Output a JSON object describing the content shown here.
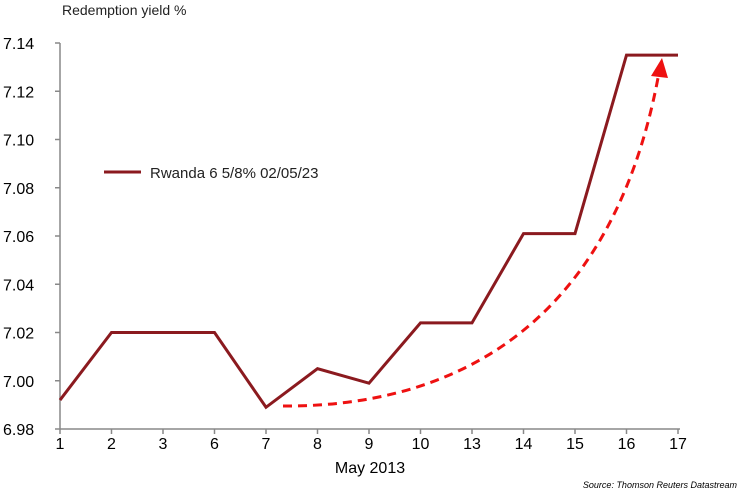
{
  "chart_data": {
    "type": "line",
    "title": "",
    "ylabel": "Redemption yield %",
    "xlabel": "May 2013",
    "categories": [
      "1",
      "2",
      "3",
      "6",
      "7",
      "8",
      "9",
      "10",
      "13",
      "14",
      "15",
      "16",
      "17"
    ],
    "series": [
      {
        "name": "Rwanda 6 5/8% 02/05/23",
        "color": "#8b1a1f",
        "values": [
          6.992,
          7.02,
          7.02,
          7.02,
          6.989,
          7.005,
          6.999,
          7.024,
          7.024,
          7.061,
          7.061,
          7.135,
          7.135
        ]
      }
    ],
    "ylim": [
      6.98,
      7.14
    ],
    "yticks": [
      "6.98",
      "7.00",
      "7.02",
      "7.04",
      "7.06",
      "7.08",
      "7.10",
      "7.12",
      "7.14"
    ],
    "grid": false,
    "legend": "middle-left",
    "annotation": "red dashed upward-trend arrow",
    "annotation_color": "#ee1111",
    "source": "Source: Thomson Reuters Datastream"
  }
}
